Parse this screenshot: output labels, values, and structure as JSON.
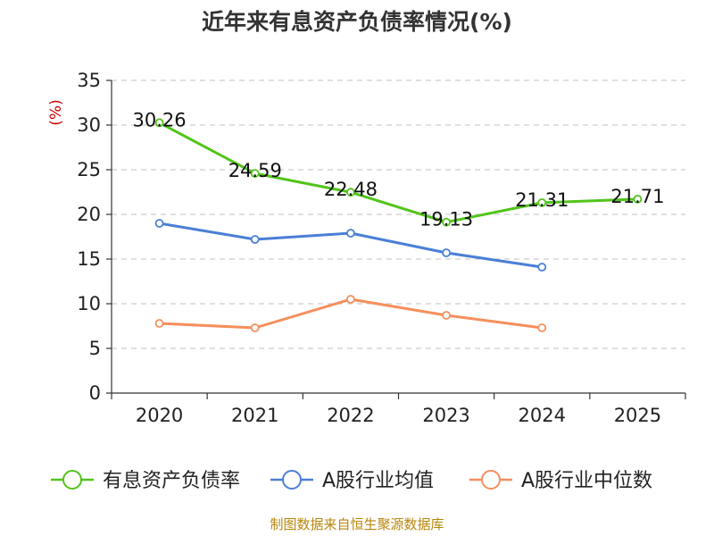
{
  "chart_data": {
    "type": "line",
    "title": "近年来有息资产负债率情况(%)",
    "ylabel": "(%)",
    "xlabel": "",
    "categories": [
      "2020",
      "2021",
      "2022",
      "2023",
      "2024",
      "2025"
    ],
    "yticks": [
      "0",
      "5",
      "10",
      "15",
      "20",
      "25",
      "30",
      "35"
    ],
    "ylim": [
      0,
      35
    ],
    "grid": true,
    "legend_position": "bottom",
    "series": [
      {
        "name": "有息资产负债率",
        "color": "#52c41a",
        "values": [
          30.26,
          24.59,
          22.48,
          19.13,
          21.31,
          21.71
        ],
        "labels": [
          "30.26",
          "24.59",
          "22.48",
          "19.13",
          "21.31",
          "21.71"
        ]
      },
      {
        "name": "A股行业均值",
        "color": "#4a7fd6",
        "values": [
          19.0,
          17.2,
          17.9,
          15.7,
          14.1,
          null
        ]
      },
      {
        "name": "A股行业中位数",
        "color": "#f58f5c",
        "values": [
          7.8,
          7.3,
          10.5,
          8.7,
          7.3,
          null
        ]
      }
    ],
    "source": "制图数据来自恒生聚源数据库"
  }
}
